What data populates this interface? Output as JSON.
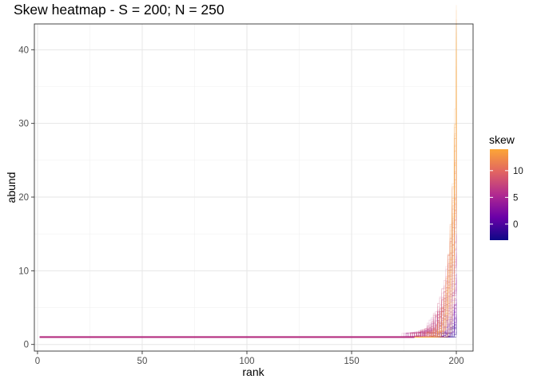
{
  "chart_data": {
    "type": "line",
    "title": "Skew heatmap - S = 200; N = 250",
    "xlabel": "rank",
    "ylabel": "abund",
    "xlim": [
      -1.5,
      208
    ],
    "ylim": [
      -0.9,
      43.5
    ],
    "x_ticks": [
      0,
      50,
      100,
      150,
      200
    ],
    "x_tick_labels": [
      "0",
      "50",
      "100",
      "150",
      "200"
    ],
    "y_ticks": [
      0,
      10,
      20,
      30,
      40
    ],
    "y_tick_labels": [
      "0",
      "10",
      "20",
      "30",
      "40"
    ],
    "grid": true,
    "legend": {
      "title": "skew",
      "position": "right",
      "breaks": [
        0,
        5,
        10
      ],
      "break_labels": [
        "0",
        "5",
        "10"
      ],
      "limits": [
        -3,
        14
      ],
      "palette": "plasma"
    },
    "colors": {
      "low": "#0d0887",
      "mid_low": "#7e03a8",
      "mid": "#cc4778",
      "mid_high": "#f89540",
      "high": "#f0f921"
    },
    "series_description": "Many overlaid rank-abundance curves, each colored by skew; all start at abund 1 for low ranks and rise steeply near rank 200.",
    "series": [
      {
        "skew": 14,
        "tail_start_rank": 188,
        "max_abund": 43
      },
      {
        "skew": 12,
        "tail_start_rank": 184,
        "max_abund": 36
      },
      {
        "skew": 10,
        "tail_start_rank": 178,
        "max_abund": 30
      },
      {
        "skew": 8,
        "tail_start_rank": 172,
        "max_abund": 22
      },
      {
        "skew": 6,
        "tail_start_rank": 166,
        "max_abund": 14
      },
      {
        "skew": 4,
        "tail_start_rank": 170,
        "max_abund": 9
      },
      {
        "skew": 2,
        "tail_start_rank": 180,
        "max_abund": 6
      },
      {
        "skew": 0,
        "tail_start_rank": 190,
        "max_abund": 4
      },
      {
        "skew": -2,
        "tail_start_rank": 195,
        "max_abund": 2
      }
    ]
  }
}
